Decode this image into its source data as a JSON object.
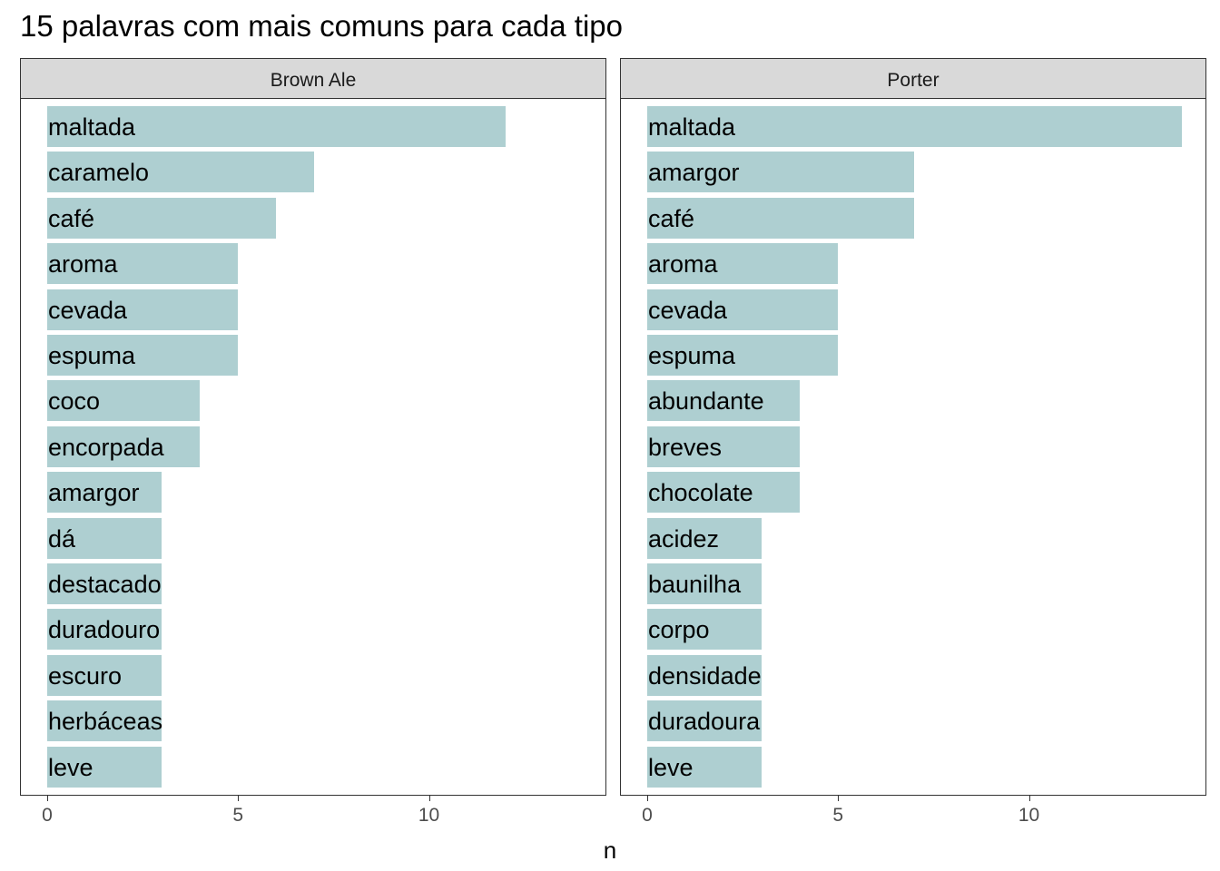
{
  "title": "15 palavras com mais comuns para cada tipo",
  "chart_data": [
    {
      "type": "bar",
      "orientation": "horizontal",
      "facet": "Brown Ale",
      "categories": [
        "maltada",
        "caramelo",
        "café",
        "aroma",
        "cevada",
        "espuma",
        "coco",
        "encorpada",
        "amargor",
        "dá",
        "destacado",
        "duradouro",
        "escuro",
        "herbáceas",
        "leve"
      ],
      "values": [
        12,
        7,
        6,
        5,
        5,
        5,
        4,
        4,
        3,
        3,
        3,
        3,
        3,
        3,
        3
      ],
      "xlabel": "n",
      "xlim": [
        0,
        14.7
      ],
      "xticks": [
        0,
        5,
        10
      ],
      "color": "#aecfd1",
      "grid": false
    },
    {
      "type": "bar",
      "orientation": "horizontal",
      "facet": "Porter",
      "categories": [
        "maltada",
        "amargor",
        "café",
        "aroma",
        "cevada",
        "espuma",
        "abundante",
        "breves",
        "chocolate",
        "acidez",
        "baunilha",
        "corpo",
        "densidade",
        "duradoura",
        "leve"
      ],
      "values": [
        14,
        7,
        7,
        5,
        5,
        5,
        4,
        4,
        4,
        3,
        3,
        3,
        3,
        3,
        3
      ],
      "xlabel": "n",
      "xlim": [
        0,
        14.7
      ],
      "xticks": [
        0,
        5,
        10
      ],
      "color": "#aecfd1",
      "grid": false
    }
  ],
  "xlabel": "n"
}
